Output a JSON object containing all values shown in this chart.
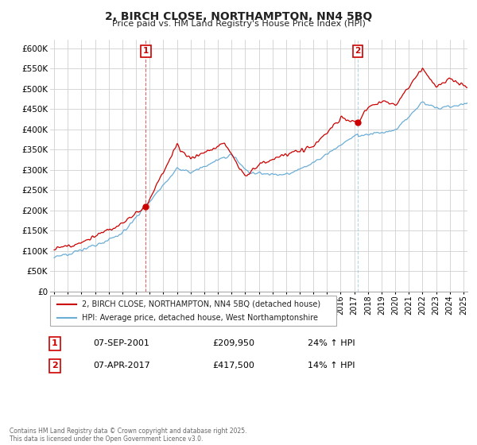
{
  "title": "2, BIRCH CLOSE, NORTHAMPTON, NN4 5BQ",
  "subtitle": "Price paid vs. HM Land Registry's House Price Index (HPI)",
  "legend_line1": "2, BIRCH CLOSE, NORTHAMPTON, NN4 5BQ (detached house)",
  "legend_line2": "HPI: Average price, detached house, West Northamptonshire",
  "annotation1_label": "1",
  "annotation1_date": "07-SEP-2001",
  "annotation1_price": "£209,950",
  "annotation1_hpi": "24% ↑ HPI",
  "annotation2_label": "2",
  "annotation2_date": "07-APR-2017",
  "annotation2_price": "£417,500",
  "annotation2_hpi": "14% ↑ HPI",
  "footer": "Contains HM Land Registry data © Crown copyright and database right 2025.\nThis data is licensed under the Open Government Licence v3.0.",
  "red_color": "#cc0000",
  "blue_color": "#6baed6",
  "vline1_color": "#cc0000",
  "vline2_color": "#6baed6",
  "ylim": [
    0,
    620000
  ],
  "yticks": [
    0,
    50000,
    100000,
    150000,
    200000,
    250000,
    300000,
    350000,
    400000,
    450000,
    500000,
    550000,
    600000
  ],
  "sale1_x": 2001.72,
  "sale1_y": 209950,
  "sale2_x": 2017.27,
  "sale2_y": 417500,
  "xmin": 1995.0,
  "xmax": 2025.3,
  "background_color": "#ffffff",
  "grid_color": "#d0d0d0"
}
